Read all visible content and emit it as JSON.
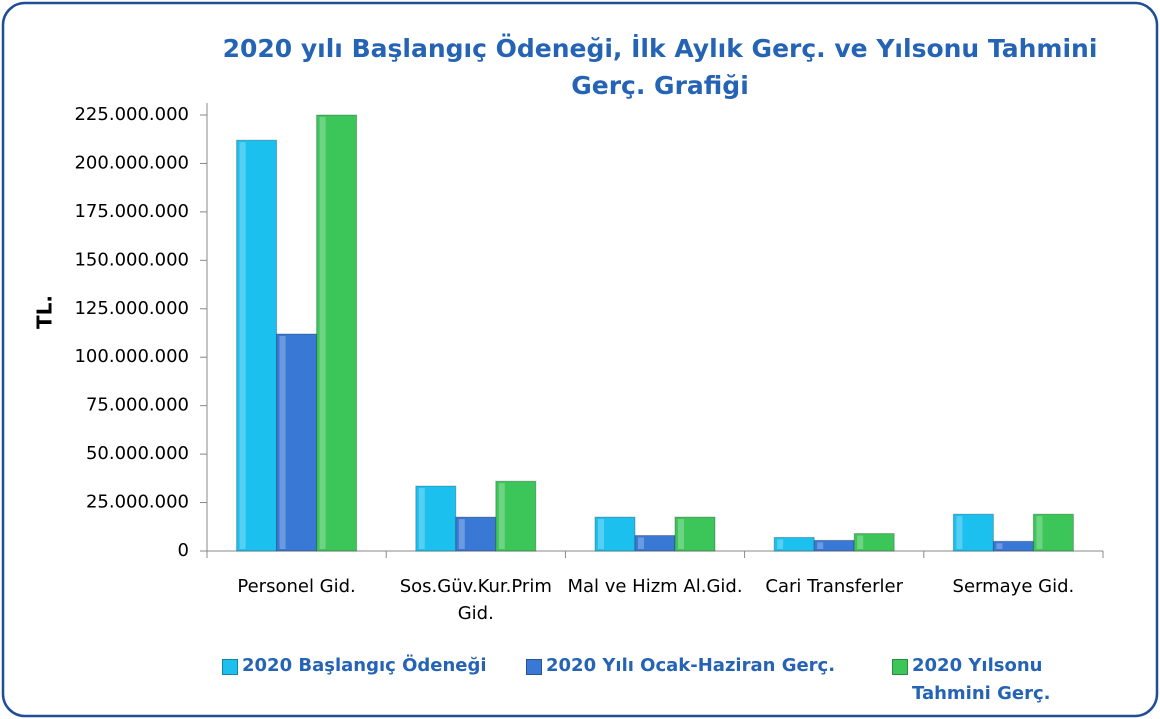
{
  "chart_data": {
    "type": "bar",
    "title": "2020 yılı Başlangıç Ödeneği, İlk Aylık Gerç. ve Yılsonu Tahmini Gerç. Grafiği",
    "y_label": "TL.",
    "categories": [
      "Personel Gid.",
      "Sos.Güv.Kur.Prim Gid.",
      "Mal ve Hizm Al.Gid.",
      "Cari Transferler",
      "Sermaye Gid."
    ],
    "series": [
      {
        "name": "2020 Başlangıç Ödeneği",
        "color": "#1cc0ee",
        "values": [
          212000000,
          33500000,
          17500000,
          7000000,
          19000000
        ]
      },
      {
        "name": "2020 Yılı Ocak-Haziran Gerç.",
        "color": "#3a78d6",
        "values": [
          112000000,
          17500000,
          8000000,
          5500000,
          5000000
        ]
      },
      {
        "name": "2020 Yılsonu Tahmini Gerç.",
        "color": "#3cc65a",
        "values": [
          225000000,
          36000000,
          17500000,
          9000000,
          19000000
        ]
      }
    ],
    "ylim": [
      0,
      225000000
    ],
    "yticks": [
      0,
      {
        "value": 25000000,
        "label": "25.000.000"
      },
      {
        "value": 50000000,
        "label": "50.000.000"
      },
      {
        "value": 75000000,
        "label": "75.000.000"
      },
      {
        "value": 100000000,
        "label": "100.000.000"
      },
      {
        "value": 125000000,
        "label": "125.000.000"
      },
      {
        "value": 150000000,
        "label": "150.000.000"
      },
      {
        "value": 175000000,
        "label": "175.000.000"
      },
      {
        "value": 200000000,
        "label": "200.000.000"
      },
      {
        "value": 225000000,
        "label": "225.000.000"
      }
    ],
    "legend": "bottom"
  }
}
